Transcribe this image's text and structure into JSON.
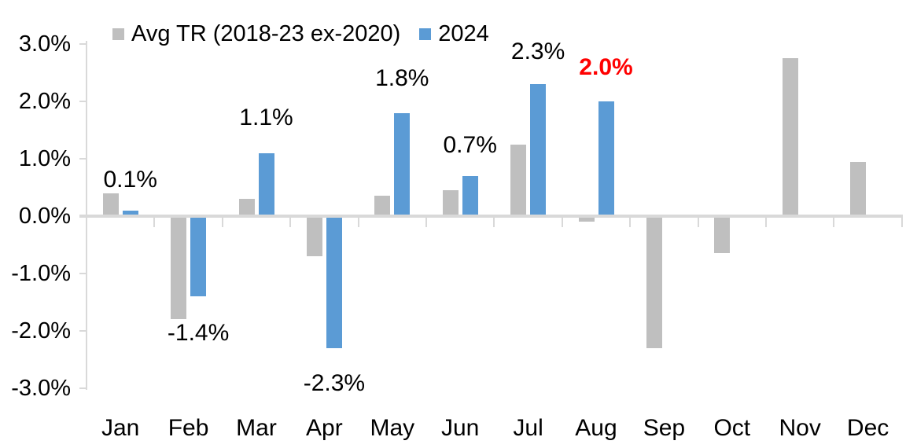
{
  "chart_data": {
    "type": "bar",
    "title": "",
    "categories": [
      "Jan",
      "Feb",
      "Mar",
      "Apr",
      "May",
      "Jun",
      "Jul",
      "Aug",
      "Sep",
      "Oct",
      "Nov",
      "Dec"
    ],
    "series": [
      {
        "name": "Avg TR (2018-23 ex-2020)",
        "color": "#BFBFBF",
        "values": [
          0.4,
          -1.8,
          0.3,
          -0.7,
          0.35,
          0.45,
          1.25,
          -0.1,
          -2.3,
          -0.65,
          2.75,
          0.95
        ]
      },
      {
        "name": "2024",
        "color": "#5B9BD5",
        "values": [
          0.1,
          -1.4,
          1.1,
          -2.3,
          1.8,
          0.7,
          2.3,
          2.0,
          null,
          null,
          null,
          null
        ]
      }
    ],
    "data_labels": [
      {
        "category": "Jan",
        "text": "0.1%",
        "color": "#000000",
        "bold": false
      },
      {
        "category": "Feb",
        "text": "-1.4%",
        "color": "#000000",
        "bold": false
      },
      {
        "category": "Mar",
        "text": "1.1%",
        "color": "#000000",
        "bold": false
      },
      {
        "category": "Apr",
        "text": "-2.3%",
        "color": "#000000",
        "bold": false
      },
      {
        "category": "May",
        "text": "1.8%",
        "color": "#000000",
        "bold": false
      },
      {
        "category": "Jun",
        "text": "0.7%",
        "color": "#000000",
        "bold": false
      },
      {
        "category": "Jul",
        "text": "2.3%",
        "color": "#000000",
        "bold": false
      },
      {
        "category": "Aug",
        "text": "2.0%",
        "color": "#FF0000",
        "bold": true
      }
    ],
    "y_axis": {
      "min": -3,
      "max": 3,
      "unit": "%",
      "tick_labels": [
        "3.0%",
        "2.0%",
        "1.0%",
        "0.0%",
        "-1.0%",
        "-2.0%",
        "-3.0%"
      ]
    },
    "legend_position": "top",
    "grid": false,
    "axis_color": "#D9D9D9",
    "label_red": "#FF0000"
  }
}
